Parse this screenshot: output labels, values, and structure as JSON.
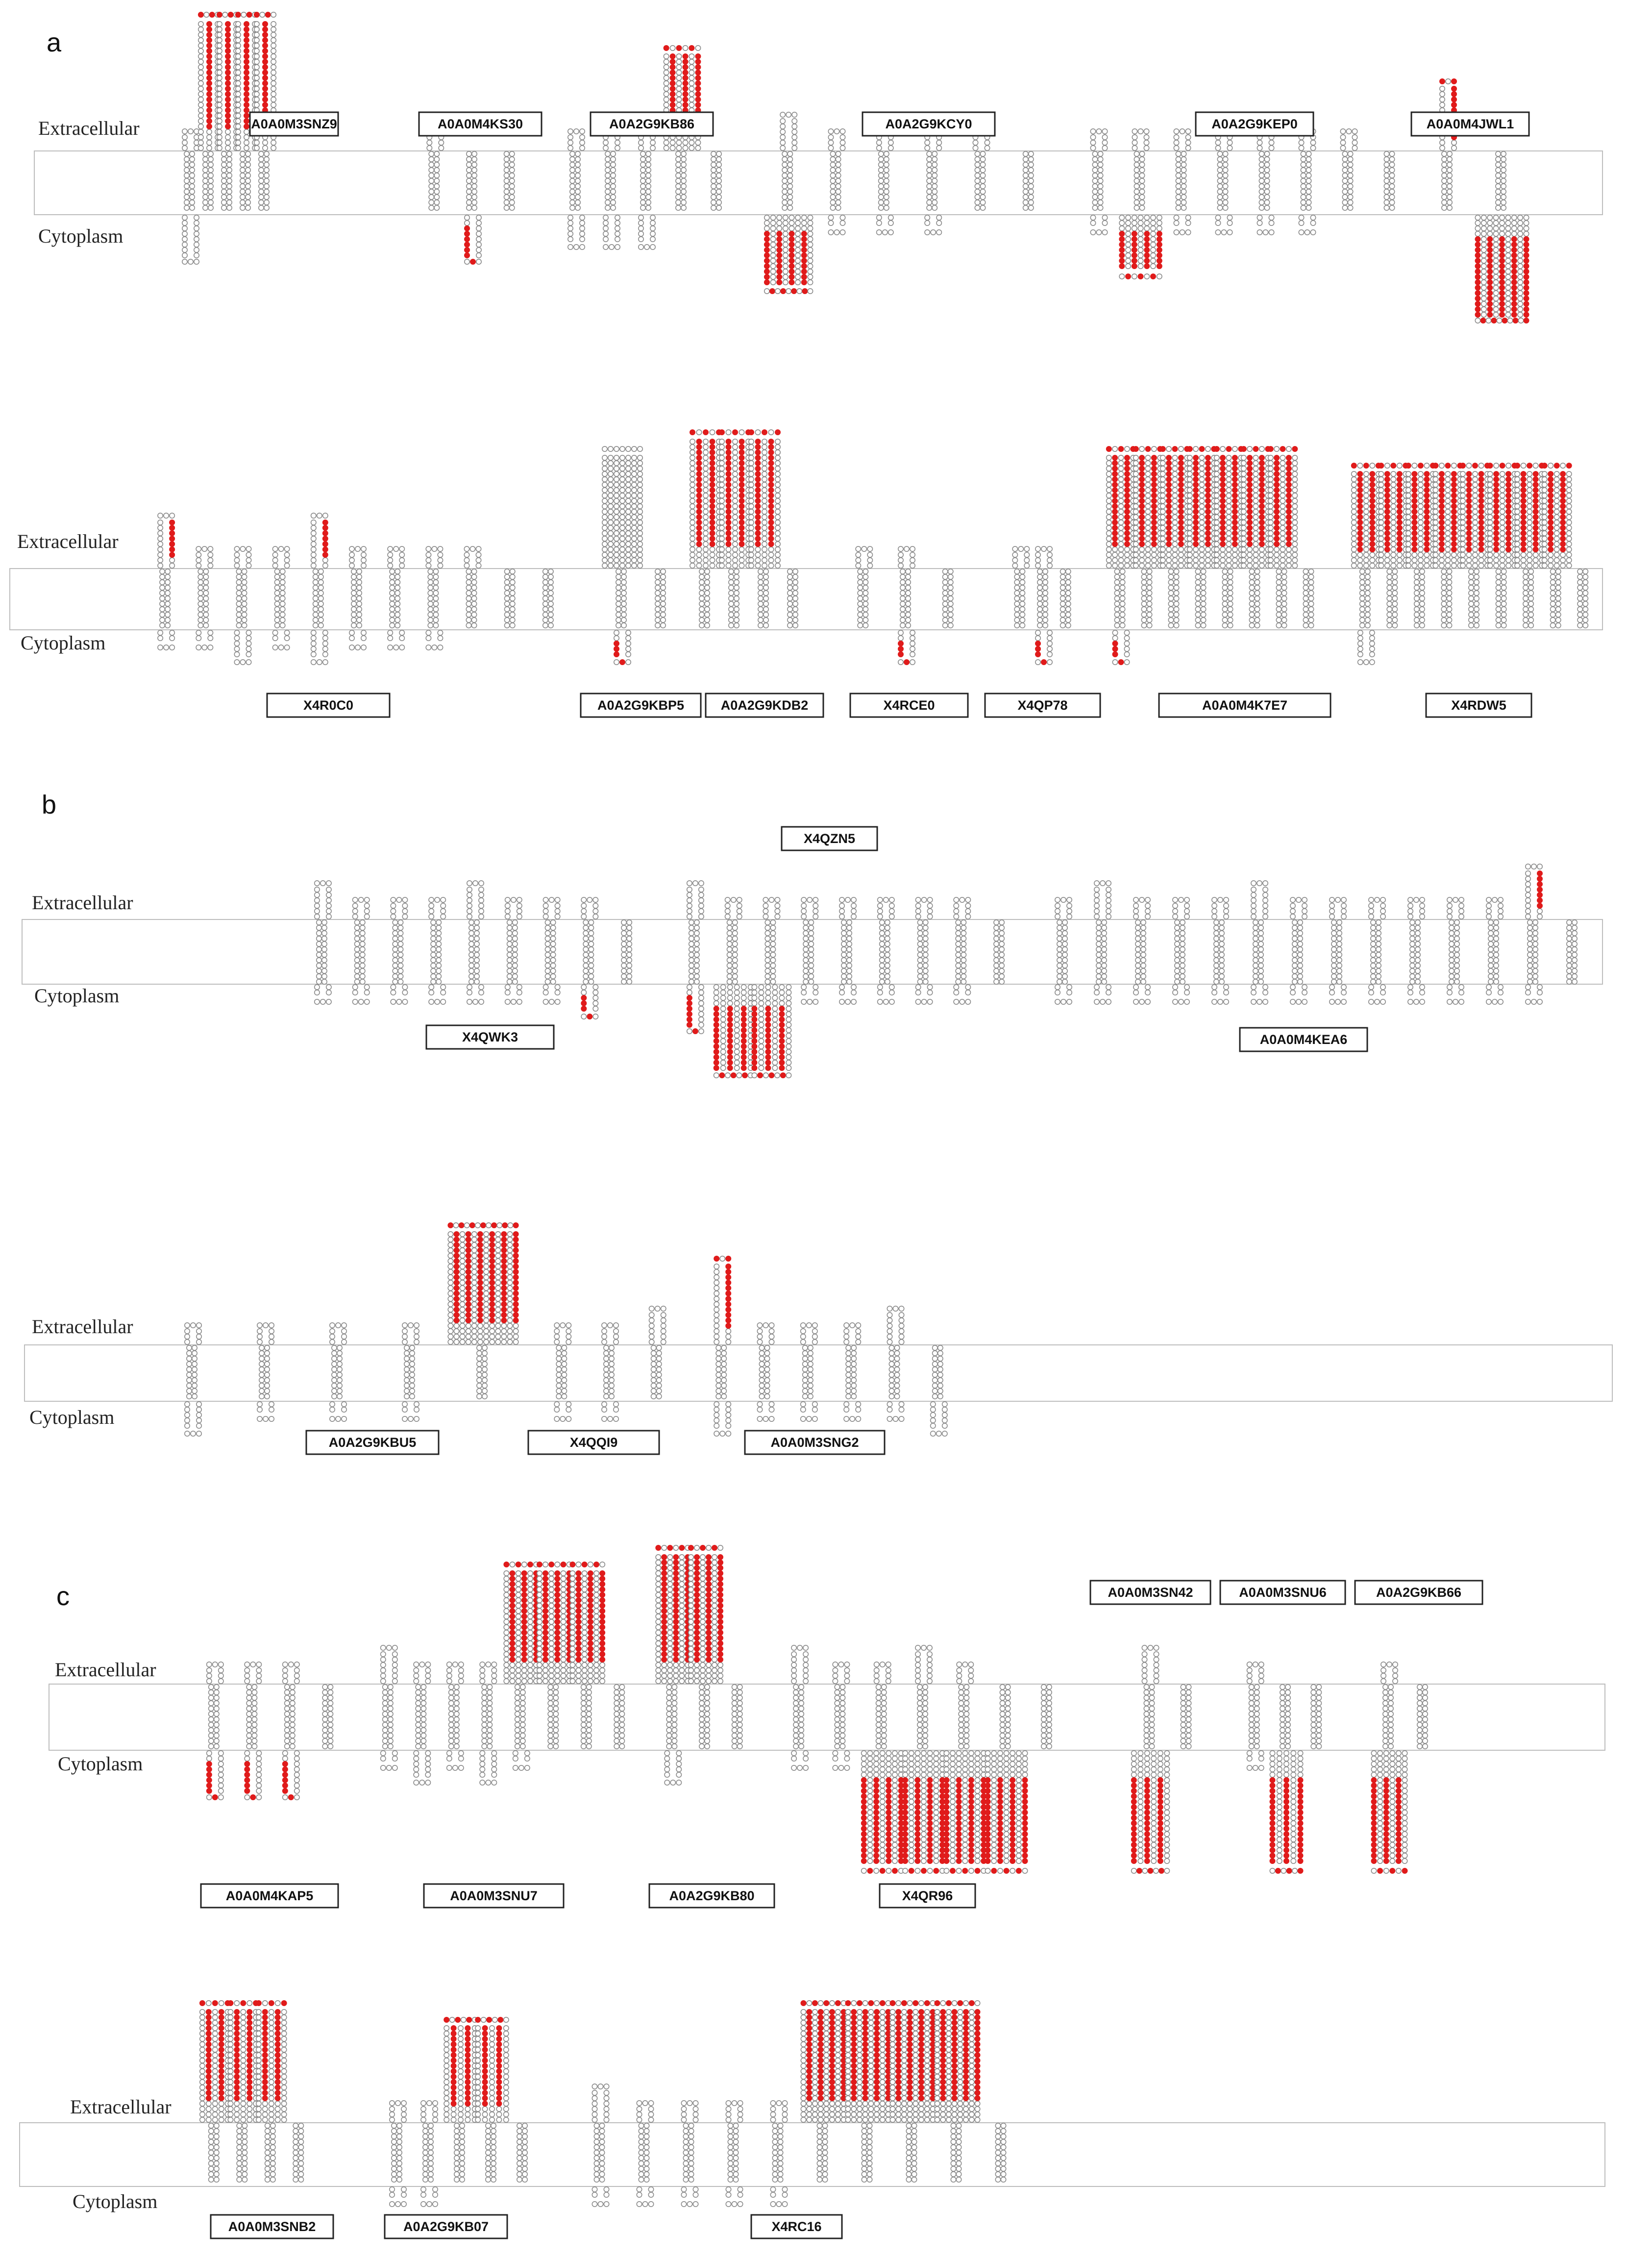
{
  "figure": {
    "colors": {
      "residue_normal": "#8a8a8a",
      "residue_highlight": "#e01b1b",
      "membrane_border": "#bdbdbd",
      "text": "#111111"
    },
    "panels": [
      {
        "letter": "a",
        "rows": [
          {
            "extracellular_label": "Extracellular",
            "cytoplasm_label": "Cytoplasm",
            "proteins": [
              {
                "id": "A0A0M3SNZ9",
                "tm_helices": 5,
                "extra_loops": [
                  1,
                  8,
                  8,
                  8,
                  8
                ],
                "cyto_loops": [
                  3,
                  0,
                  0,
                  0,
                  0
                ],
                "highlight": "extra"
              },
              {
                "id": "A0A0M4KS30",
                "tm_helices": 3,
                "extra_loops": [
                  1,
                  0,
                  0
                ],
                "cyto_loops": [
                  0,
                  3,
                  0
                ],
                "highlight": "cyto"
              },
              {
                "id": "A0A2G9KB86",
                "tm_helices": 5,
                "extra_loops": [
                  1,
                  1,
                  2,
                  6,
                  0
                ],
                "cyto_loops": [
                  2,
                  2,
                  2,
                  0,
                  0
                ],
                "highlight": "extra"
              },
              {
                "id": "A0A2G9KCY0",
                "tm_helices": 6,
                "extra_loops": [
                  2,
                  1,
                  1,
                  2,
                  2,
                  0
                ],
                "cyto_loops": [
                  5,
                  1,
                  1,
                  1,
                  0,
                  0
                ],
                "highlight": "cyto"
              },
              {
                "id": "A0A2G9KEP0",
                "tm_helices": 8,
                "extra_loops": [
                  1,
                  1,
                  1,
                  2,
                  1,
                  1,
                  1,
                  0
                ],
                "cyto_loops": [
                  1,
                  4,
                  1,
                  1,
                  1,
                  1,
                  0,
                  0
                ],
                "highlight": "cyto"
              },
              {
                "id": "A0A0M4JWL1",
                "tm_helices": 2,
                "extra_loops": [
                  4,
                  0
                ],
                "cyto_loops": [
                  0,
                  7
                ],
                "highlight": "both"
              }
            ]
          },
          {
            "extracellular_label": "Extracellular",
            "cytoplasm_label": "Cytoplasm",
            "proteins": [
              {
                "id": "X4R0C0",
                "tm_helices": 11,
                "extra_loops": [
                  3,
                  1,
                  1,
                  1,
                  3,
                  1,
                  1,
                  1,
                  1,
                  0,
                  0
                ],
                "cyto_loops": [
                  1,
                  1,
                  2,
                  1,
                  2,
                  1,
                  1,
                  1,
                  0,
                  0,
                  0
                ],
                "highlight": "extra"
              },
              {
                "id": "A0A2G9KBP5",
                "tm_helices": 2,
                "extra_loops": [
                  7,
                  0
                ],
                "cyto_loops": [
                  2,
                  0
                ],
                "highlight": "cyto"
              },
              {
                "id": "A0A2G9KDB2",
                "tm_helices": 4,
                "extra_loops": [
                  8,
                  8,
                  8,
                  0
                ],
                "cyto_loops": [
                  0,
                  0,
                  0,
                  0
                ],
                "highlight": "extra"
              },
              {
                "id": "X4RCE0",
                "tm_helices": 3,
                "extra_loops": [
                  1,
                  1,
                  0
                ],
                "cyto_loops": [
                  0,
                  2,
                  0
                ],
                "highlight": "cyto"
              },
              {
                "id": "X4QP78",
                "tm_helices": 3,
                "extra_loops": [
                  1,
                  1,
                  0
                ],
                "cyto_loops": [
                  0,
                  2,
                  0
                ],
                "highlight": "cyto"
              },
              {
                "id": "A0A0M4K7E7",
                "tm_helices": 8,
                "extra_loops": [
                  7,
                  7,
                  7,
                  7,
                  7,
                  7,
                  7,
                  0
                ],
                "cyto_loops": [
                  2,
                  0,
                  0,
                  0,
                  0,
                  0,
                  0,
                  0
                ],
                "highlight": "both"
              },
              {
                "id": "X4RDW5",
                "tm_helices": 9,
                "extra_loops": [
                  6,
                  6,
                  6,
                  6,
                  6,
                  6,
                  6,
                  6,
                  0
                ],
                "cyto_loops": [
                  2,
                  0,
                  0,
                  0,
                  0,
                  0,
                  0,
                  0,
                  0
                ],
                "highlight": "extra"
              }
            ]
          }
        ]
      },
      {
        "letter": "b",
        "rows": [
          {
            "extracellular_label": "Extracellular",
            "cytoplasm_label": "Cytoplasm",
            "proteins": [
              {
                "id": "X4QWK3",
                "tm_helices": 9,
                "extra_loops": [
                  2,
                  1,
                  1,
                  1,
                  2,
                  1,
                  1,
                  1,
                  0
                ],
                "cyto_loops": [
                  1,
                  1,
                  1,
                  1,
                  1,
                  1,
                  1,
                  2,
                  0
                ],
                "highlight": "cyto"
              },
              {
                "id": "X4QZN5",
                "tm_helices": 9,
                "extra_loops": [
                  2,
                  1,
                  1,
                  1,
                  1,
                  1,
                  1,
                  1,
                  0
                ],
                "cyto_loops": [
                  3,
                  6,
                  6,
                  1,
                  1,
                  1,
                  1,
                  1,
                  0
                ],
                "highlight": "cyto"
              },
              {
                "id": "A0A0M4KEA6",
                "tm_helices": 14,
                "extra_loops": [
                  1,
                  2,
                  1,
                  1,
                  1,
                  2,
                  1,
                  1,
                  1,
                  1,
                  1,
                  1,
                  3,
                  0
                ],
                "cyto_loops": [
                  1,
                  1,
                  1,
                  1,
                  1,
                  1,
                  1,
                  1,
                  1,
                  1,
                  1,
                  1,
                  1,
                  0
                ],
                "highlight": "extra"
              }
            ]
          },
          {
            "extracellular_label": "Extracellular",
            "cytoplasm_label": "Cytoplasm",
            "proteins": [
              {
                "id": "A0A2G9KBU5",
                "tm_helices": 5,
                "extra_loops": [
                  1,
                  1,
                  1,
                  1,
                  7
                ],
                "cyto_loops": [
                  2,
                  1,
                  1,
                  1,
                  0
                ],
                "highlight": "extra"
              },
              {
                "id": "X4QQI9",
                "tm_helices": 3,
                "extra_loops": [
                  1,
                  1,
                  2
                ],
                "cyto_loops": [
                  1,
                  1,
                  0
                ],
                "highlight": "extra"
              },
              {
                "id": "A0A0M3SNG2",
                "tm_helices": 6,
                "extra_loops": [
                  5,
                  1,
                  1,
                  1,
                  2,
                  0
                ],
                "cyto_loops": [
                  2,
                  1,
                  1,
                  1,
                  1,
                  2
                ],
                "highlight": "extra"
              }
            ]
          }
        ]
      },
      {
        "letter": "c",
        "rows": [
          {
            "extracellular_label": "Extracellular",
            "cytoplasm_label": "Cytoplasm",
            "header_labels": [
              "A0A0M3SN42",
              "A0A0M3SNU6",
              "A0A2G9KB66"
            ],
            "proteins": [
              {
                "id": "A0A0M4KAP5",
                "tm_helices": 4,
                "extra_loops": [
                  1,
                  1,
                  1,
                  0
                ],
                "cyto_loops": [
                  3,
                  3,
                  3,
                  0
                ],
                "highlight": "cyto"
              },
              {
                "id": "A0A0M3SNU7",
                "tm_helices": 8,
                "extra_loops": [
                  2,
                  1,
                  1,
                  1,
                  7,
                  7,
                  7,
                  0
                ],
                "cyto_loops": [
                  1,
                  2,
                  1,
                  2,
                  1,
                  0,
                  0,
                  0
                ],
                "highlight": "extra"
              },
              {
                "id": "A0A2G9KB80",
                "tm_helices": 3,
                "extra_loops": [
                  8,
                  8,
                  0
                ],
                "cyto_loops": [
                  2,
                  0,
                  0
                ],
                "highlight": "extra"
              },
              {
                "id": "X4QR96",
                "tm_helices": 7,
                "extra_loops": [
                  2,
                  1,
                  1,
                  2,
                  1,
                  0,
                  0
                ],
                "cyto_loops": [
                  1,
                  1,
                  8,
                  8,
                  8,
                  8,
                  0
                ],
                "highlight": "cyto"
              },
              {
                "id": "A0A0M3SN42",
                "tm_helices": 2,
                "extra_loops": [
                  2,
                  0
                ],
                "cyto_loops": [
                  8,
                  0
                ],
                "highlight": "cyto"
              },
              {
                "id": "A0A0M3SNU6",
                "tm_helices": 3,
                "extra_loops": [
                  1,
                  0,
                  0
                ],
                "cyto_loops": [
                  1,
                  8,
                  0
                ],
                "highlight": "cyto"
              },
              {
                "id": "A0A2G9KB66",
                "tm_helices": 2,
                "extra_loops": [
                  1,
                  0
                ],
                "cyto_loops": [
                  8,
                  0
                ],
                "highlight": "cyto"
              }
            ]
          },
          {
            "extracellular_label": "Extracellular",
            "cytoplasm_label": "Cytoplasm",
            "proteins": [
              {
                "id": "A0A0M3SNB2",
                "tm_helices": 4,
                "extra_loops": [
                  7,
                  7,
                  7,
                  0
                ],
                "cyto_loops": [
                  0,
                  0,
                  0,
                  0
                ],
                "highlight": "extra"
              },
              {
                "id": "A0A2G9KB07",
                "tm_helices": 5,
                "extra_loops": [
                  1,
                  1,
                  6,
                  6,
                  0
                ],
                "cyto_loops": [
                  1,
                  1,
                  0,
                  0,
                  0
                ],
                "highlight": "extra"
              },
              {
                "id": "X4RC16",
                "tm_helices": 10,
                "extra_loops": [
                  2,
                  1,
                  1,
                  1,
                  1,
                  7,
                  7,
                  7,
                  7,
                  0
                ],
                "cyto_loops": [
                  1,
                  1,
                  1,
                  1,
                  1,
                  0,
                  0,
                  0,
                  0,
                  0
                ],
                "highlight": "extra"
              }
            ]
          }
        ]
      }
    ]
  }
}
